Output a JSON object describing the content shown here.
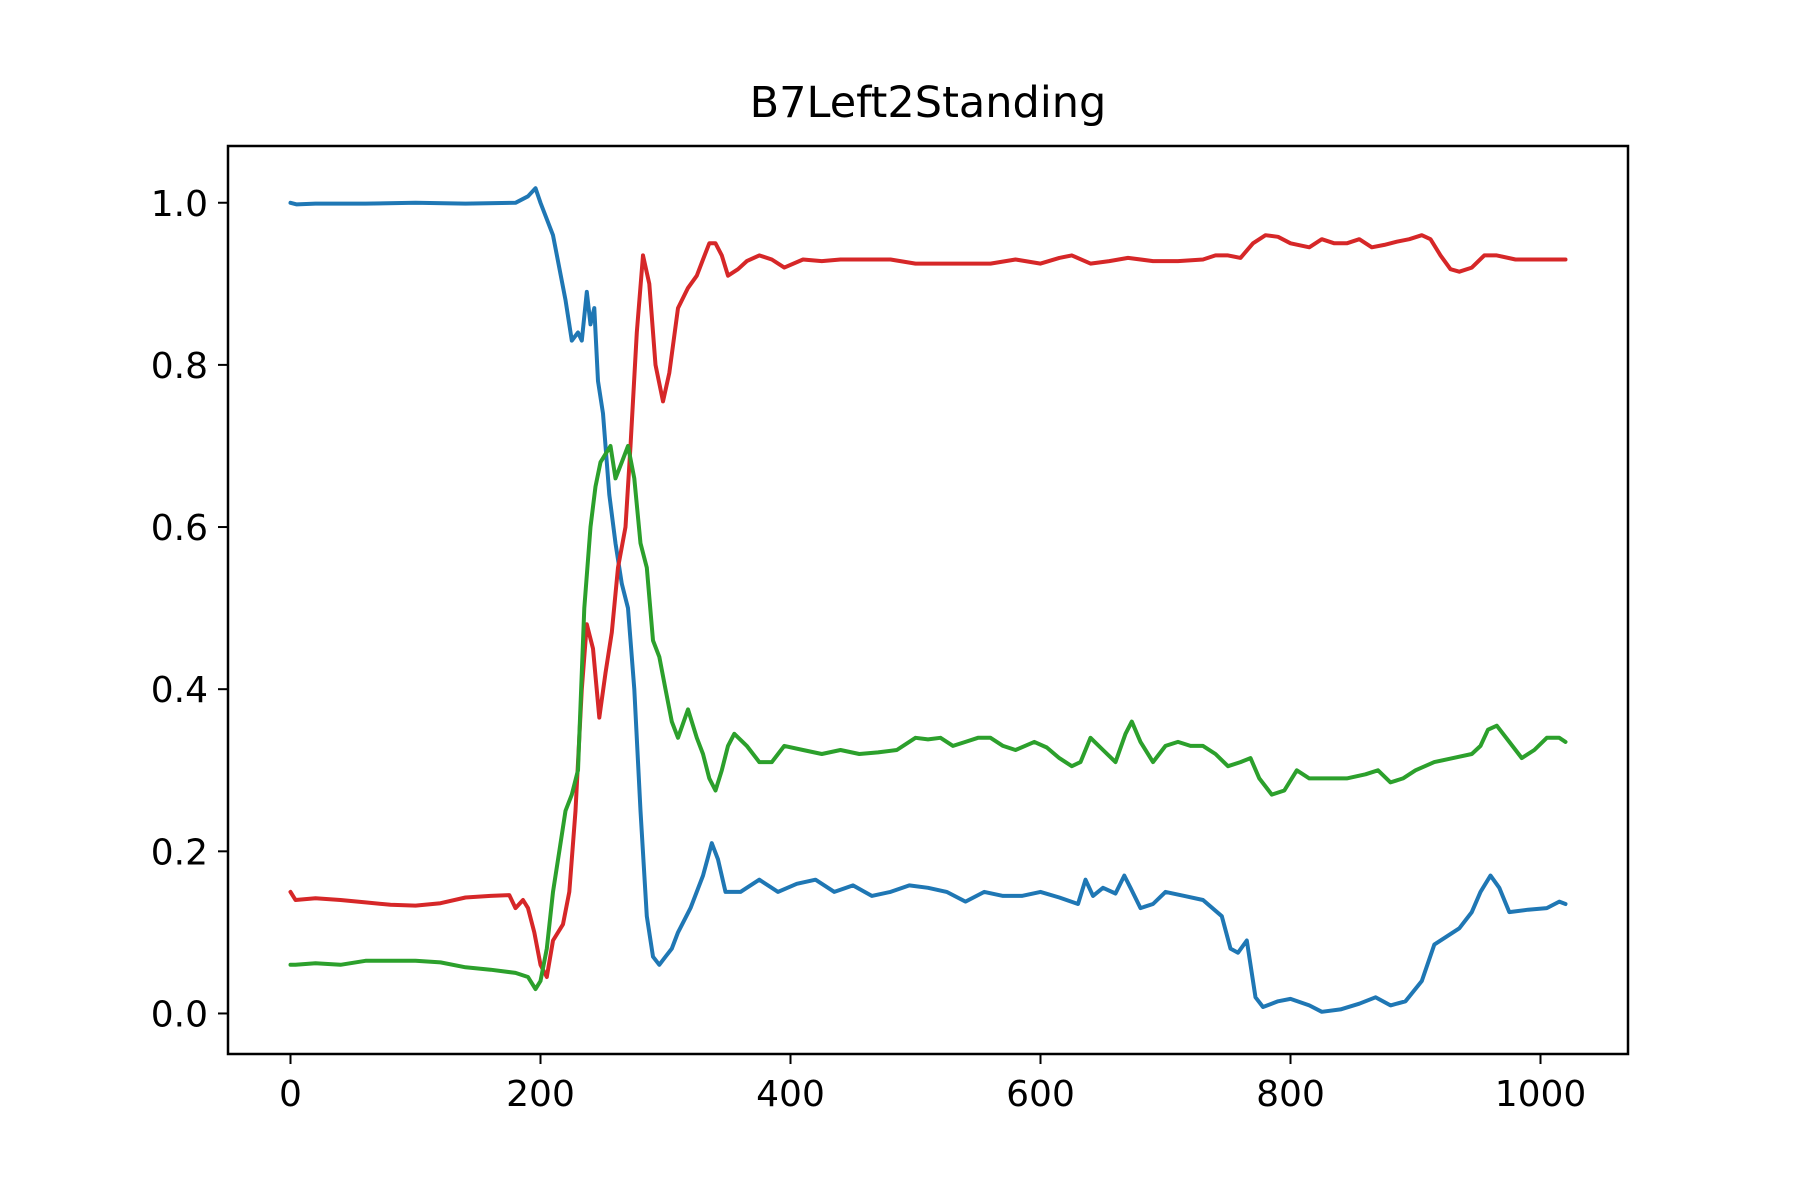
{
  "chart_data": {
    "type": "line",
    "title": "B7Left2Standing",
    "xlabel": "",
    "ylabel": "",
    "xlim": [
      -50,
      1070
    ],
    "ylim": [
      -0.05,
      1.07
    ],
    "xticks": [
      0,
      200,
      400,
      600,
      800,
      1000
    ],
    "xtick_labels": [
      "0",
      "200",
      "400",
      "600",
      "800",
      "1000"
    ],
    "yticks": [
      0.0,
      0.2,
      0.4,
      0.6,
      0.8,
      1.0
    ],
    "ytick_labels": [
      "0.0",
      "0.2",
      "0.4",
      "0.6",
      "0.8",
      "1.0"
    ],
    "grid": false,
    "legend": "none",
    "series": [
      {
        "color": "#1f77b4",
        "points": [
          [
            0,
            1.0
          ],
          [
            5,
            0.998
          ],
          [
            20,
            0.999
          ],
          [
            60,
            0.999
          ],
          [
            100,
            1.0
          ],
          [
            140,
            0.999
          ],
          [
            180,
            1.0
          ],
          [
            190,
            1.008
          ],
          [
            196,
            1.018
          ],
          [
            200,
            1.0
          ],
          [
            210,
            0.96
          ],
          [
            220,
            0.88
          ],
          [
            225,
            0.83
          ],
          [
            230,
            0.84
          ],
          [
            233,
            0.83
          ],
          [
            237,
            0.89
          ],
          [
            240,
            0.85
          ],
          [
            243,
            0.87
          ],
          [
            246,
            0.78
          ],
          [
            250,
            0.74
          ],
          [
            255,
            0.64
          ],
          [
            260,
            0.58
          ],
          [
            265,
            0.53
          ],
          [
            270,
            0.5
          ],
          [
            275,
            0.4
          ],
          [
            280,
            0.25
          ],
          [
            285,
            0.12
          ],
          [
            290,
            0.07
          ],
          [
            295,
            0.06
          ],
          [
            300,
            0.07
          ],
          [
            305,
            0.08
          ],
          [
            310,
            0.1
          ],
          [
            320,
            0.13
          ],
          [
            330,
            0.17
          ],
          [
            337,
            0.21
          ],
          [
            342,
            0.19
          ],
          [
            348,
            0.15
          ],
          [
            360,
            0.15
          ],
          [
            375,
            0.165
          ],
          [
            390,
            0.15
          ],
          [
            405,
            0.16
          ],
          [
            420,
            0.165
          ],
          [
            435,
            0.15
          ],
          [
            450,
            0.158
          ],
          [
            465,
            0.145
          ],
          [
            480,
            0.15
          ],
          [
            495,
            0.158
          ],
          [
            510,
            0.155
          ],
          [
            525,
            0.15
          ],
          [
            540,
            0.138
          ],
          [
            555,
            0.15
          ],
          [
            570,
            0.145
          ],
          [
            585,
            0.145
          ],
          [
            600,
            0.15
          ],
          [
            615,
            0.143
          ],
          [
            630,
            0.135
          ],
          [
            636,
            0.165
          ],
          [
            642,
            0.145
          ],
          [
            650,
            0.155
          ],
          [
            660,
            0.148
          ],
          [
            667,
            0.17
          ],
          [
            672,
            0.155
          ],
          [
            680,
            0.13
          ],
          [
            690,
            0.135
          ],
          [
            700,
            0.15
          ],
          [
            715,
            0.145
          ],
          [
            730,
            0.14
          ],
          [
            745,
            0.12
          ],
          [
            752,
            0.08
          ],
          [
            758,
            0.075
          ],
          [
            765,
            0.09
          ],
          [
            772,
            0.02
          ],
          [
            778,
            0.008
          ],
          [
            790,
            0.015
          ],
          [
            800,
            0.018
          ],
          [
            815,
            0.01
          ],
          [
            825,
            0.002
          ],
          [
            840,
            0.005
          ],
          [
            855,
            0.012
          ],
          [
            868,
            0.02
          ],
          [
            880,
            0.01
          ],
          [
            892,
            0.015
          ],
          [
            905,
            0.04
          ],
          [
            915,
            0.085
          ],
          [
            925,
            0.095
          ],
          [
            935,
            0.105
          ],
          [
            945,
            0.125
          ],
          [
            952,
            0.15
          ],
          [
            960,
            0.17
          ],
          [
            967,
            0.155
          ],
          [
            975,
            0.125
          ],
          [
            990,
            0.128
          ],
          [
            1005,
            0.13
          ],
          [
            1015,
            0.138
          ],
          [
            1020,
            0.135
          ]
        ]
      },
      {
        "color": "#d62728",
        "points": [
          [
            0,
            0.15
          ],
          [
            4,
            0.14
          ],
          [
            20,
            0.142
          ],
          [
            40,
            0.14
          ],
          [
            60,
            0.137
          ],
          [
            80,
            0.134
          ],
          [
            100,
            0.133
          ],
          [
            120,
            0.136
          ],
          [
            140,
            0.143
          ],
          [
            160,
            0.145
          ],
          [
            175,
            0.146
          ],
          [
            180,
            0.13
          ],
          [
            186,
            0.14
          ],
          [
            190,
            0.13
          ],
          [
            195,
            0.1
          ],
          [
            200,
            0.06
          ],
          [
            205,
            0.045
          ],
          [
            210,
            0.09
          ],
          [
            218,
            0.11
          ],
          [
            223,
            0.15
          ],
          [
            228,
            0.25
          ],
          [
            233,
            0.4
          ],
          [
            237,
            0.48
          ],
          [
            242,
            0.45
          ],
          [
            247,
            0.365
          ],
          [
            252,
            0.42
          ],
          [
            257,
            0.47
          ],
          [
            262,
            0.55
          ],
          [
            268,
            0.6
          ],
          [
            272,
            0.7
          ],
          [
            277,
            0.84
          ],
          [
            282,
            0.935
          ],
          [
            287,
            0.9
          ],
          [
            292,
            0.8
          ],
          [
            298,
            0.755
          ],
          [
            303,
            0.79
          ],
          [
            310,
            0.87
          ],
          [
            318,
            0.895
          ],
          [
            325,
            0.91
          ],
          [
            330,
            0.93
          ],
          [
            335,
            0.95
          ],
          [
            340,
            0.95
          ],
          [
            345,
            0.935
          ],
          [
            350,
            0.91
          ],
          [
            358,
            0.918
          ],
          [
            365,
            0.928
          ],
          [
            375,
            0.935
          ],
          [
            385,
            0.93
          ],
          [
            395,
            0.92
          ],
          [
            410,
            0.93
          ],
          [
            425,
            0.928
          ],
          [
            440,
            0.93
          ],
          [
            460,
            0.93
          ],
          [
            480,
            0.93
          ],
          [
            500,
            0.925
          ],
          [
            520,
            0.925
          ],
          [
            540,
            0.925
          ],
          [
            560,
            0.925
          ],
          [
            580,
            0.93
          ],
          [
            600,
            0.925
          ],
          [
            615,
            0.932
          ],
          [
            625,
            0.935
          ],
          [
            640,
            0.925
          ],
          [
            655,
            0.928
          ],
          [
            670,
            0.932
          ],
          [
            690,
            0.928
          ],
          [
            710,
            0.928
          ],
          [
            730,
            0.93
          ],
          [
            740,
            0.935
          ],
          [
            750,
            0.935
          ],
          [
            760,
            0.932
          ],
          [
            770,
            0.95
          ],
          [
            780,
            0.96
          ],
          [
            790,
            0.958
          ],
          [
            800,
            0.95
          ],
          [
            815,
            0.945
          ],
          [
            825,
            0.955
          ],
          [
            835,
            0.95
          ],
          [
            845,
            0.95
          ],
          [
            855,
            0.955
          ],
          [
            865,
            0.945
          ],
          [
            875,
            0.948
          ],
          [
            885,
            0.952
          ],
          [
            895,
            0.955
          ],
          [
            905,
            0.96
          ],
          [
            912,
            0.955
          ],
          [
            920,
            0.935
          ],
          [
            928,
            0.918
          ],
          [
            935,
            0.915
          ],
          [
            945,
            0.92
          ],
          [
            955,
            0.935
          ],
          [
            965,
            0.935
          ],
          [
            980,
            0.93
          ],
          [
            1000,
            0.93
          ],
          [
            1015,
            0.93
          ],
          [
            1020,
            0.93
          ]
        ]
      },
      {
        "color": "#2ca02c",
        "points": [
          [
            0,
            0.06
          ],
          [
            4,
            0.06
          ],
          [
            20,
            0.062
          ],
          [
            40,
            0.06
          ],
          [
            60,
            0.065
          ],
          [
            80,
            0.065
          ],
          [
            100,
            0.065
          ],
          [
            120,
            0.063
          ],
          [
            140,
            0.057
          ],
          [
            160,
            0.054
          ],
          [
            180,
            0.05
          ],
          [
            190,
            0.045
          ],
          [
            196,
            0.03
          ],
          [
            200,
            0.04
          ],
          [
            205,
            0.08
          ],
          [
            210,
            0.15
          ],
          [
            215,
            0.2
          ],
          [
            220,
            0.25
          ],
          [
            225,
            0.27
          ],
          [
            230,
            0.3
          ],
          [
            235,
            0.5
          ],
          [
            240,
            0.6
          ],
          [
            244,
            0.65
          ],
          [
            248,
            0.68
          ],
          [
            252,
            0.69
          ],
          [
            256,
            0.7
          ],
          [
            260,
            0.66
          ],
          [
            265,
            0.68
          ],
          [
            270,
            0.7
          ],
          [
            275,
            0.66
          ],
          [
            280,
            0.58
          ],
          [
            285,
            0.55
          ],
          [
            290,
            0.46
          ],
          [
            295,
            0.44
          ],
          [
            300,
            0.4
          ],
          [
            305,
            0.36
          ],
          [
            310,
            0.34
          ],
          [
            318,
            0.375
          ],
          [
            325,
            0.34
          ],
          [
            330,
            0.32
          ],
          [
            335,
            0.29
          ],
          [
            340,
            0.275
          ],
          [
            345,
            0.3
          ],
          [
            350,
            0.33
          ],
          [
            355,
            0.345
          ],
          [
            365,
            0.33
          ],
          [
            375,
            0.31
          ],
          [
            385,
            0.31
          ],
          [
            395,
            0.33
          ],
          [
            410,
            0.325
          ],
          [
            425,
            0.32
          ],
          [
            440,
            0.325
          ],
          [
            455,
            0.32
          ],
          [
            470,
            0.322
          ],
          [
            485,
            0.325
          ],
          [
            500,
            0.34
          ],
          [
            510,
            0.338
          ],
          [
            520,
            0.34
          ],
          [
            530,
            0.33
          ],
          [
            540,
            0.335
          ],
          [
            550,
            0.34
          ],
          [
            560,
            0.34
          ],
          [
            570,
            0.33
          ],
          [
            580,
            0.325
          ],
          [
            595,
            0.335
          ],
          [
            605,
            0.328
          ],
          [
            615,
            0.315
          ],
          [
            625,
            0.305
          ],
          [
            632,
            0.31
          ],
          [
            640,
            0.34
          ],
          [
            650,
            0.325
          ],
          [
            660,
            0.31
          ],
          [
            668,
            0.345
          ],
          [
            673,
            0.36
          ],
          [
            680,
            0.335
          ],
          [
            690,
            0.31
          ],
          [
            700,
            0.33
          ],
          [
            710,
            0.335
          ],
          [
            720,
            0.33
          ],
          [
            730,
            0.33
          ],
          [
            740,
            0.32
          ],
          [
            750,
            0.305
          ],
          [
            760,
            0.31
          ],
          [
            768,
            0.315
          ],
          [
            775,
            0.29
          ],
          [
            785,
            0.27
          ],
          [
            795,
            0.275
          ],
          [
            805,
            0.3
          ],
          [
            815,
            0.29
          ],
          [
            830,
            0.29
          ],
          [
            845,
            0.29
          ],
          [
            860,
            0.295
          ],
          [
            870,
            0.3
          ],
          [
            880,
            0.285
          ],
          [
            890,
            0.29
          ],
          [
            900,
            0.3
          ],
          [
            915,
            0.31
          ],
          [
            930,
            0.315
          ],
          [
            945,
            0.32
          ],
          [
            952,
            0.33
          ],
          [
            958,
            0.35
          ],
          [
            965,
            0.355
          ],
          [
            975,
            0.335
          ],
          [
            985,
            0.315
          ],
          [
            995,
            0.325
          ],
          [
            1005,
            0.34
          ],
          [
            1015,
            0.34
          ],
          [
            1020,
            0.335
          ]
        ]
      }
    ]
  }
}
